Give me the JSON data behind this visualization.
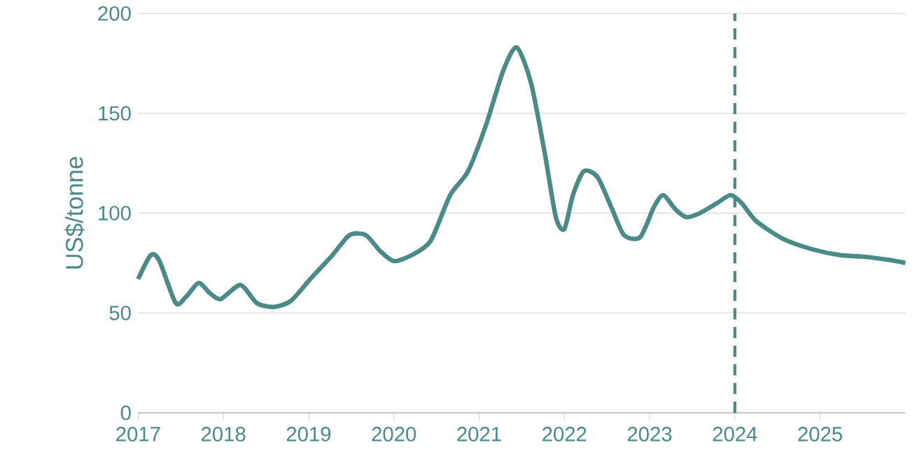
{
  "chart_data": {
    "type": "line",
    "ylabel": "US$/tonne",
    "xlim": [
      2017,
      2026
    ],
    "ylim": [
      0,
      200
    ],
    "xticks": [
      2017,
      2018,
      2019,
      2020,
      2021,
      2022,
      2023,
      2024,
      2025
    ],
    "yticks": [
      0,
      50,
      100,
      150,
      200
    ],
    "grid": "y",
    "marker": "none",
    "line_style": "solid",
    "x": [
      2017.0,
      2017.15,
      2017.25,
      2017.44,
      2017.56,
      2017.71,
      2017.84,
      2017.97,
      2018.2,
      2018.39,
      2018.59,
      2018.79,
      2019.02,
      2019.28,
      2019.48,
      2019.67,
      2019.84,
      2020.0,
      2020.21,
      2020.43,
      2020.66,
      2020.87,
      2021.08,
      2021.28,
      2021.44,
      2021.61,
      2021.77,
      2021.9,
      2022.0,
      2022.1,
      2022.23,
      2022.39,
      2022.56,
      2022.7,
      2022.89,
      2023.05,
      2023.16,
      2023.3,
      2023.43,
      2023.59,
      2023.79,
      2023.95,
      2024.08,
      2024.25,
      2024.57,
      2024.9,
      2025.23,
      2025.56,
      2025.89,
      2026.0
    ],
    "series": [
      {
        "color": "#4a8a87",
        "values": [
          67,
          79,
          76,
          55,
          58,
          65,
          60,
          57,
          64,
          55,
          53,
          56,
          67,
          79,
          89,
          89,
          81,
          76,
          79,
          86,
          109,
          121,
          144,
          171,
          183,
          165,
          130,
          98,
          92,
          109,
          121,
          118,
          102,
          89,
          88,
          103,
          109,
          102,
          98,
          100,
          105,
          109,
          105,
          96,
          87,
          82,
          79,
          78,
          76,
          75
        ]
      }
    ],
    "ref_lines": [
      {
        "axis": "x",
        "value": 2024,
        "color": "#4a8a87",
        "line_style": "dashed"
      }
    ]
  }
}
